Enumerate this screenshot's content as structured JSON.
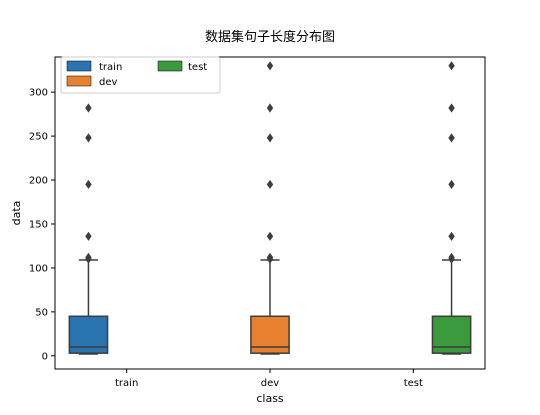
{
  "chart_data": {
    "type": "boxplot",
    "title": "数据集句子长度分布图",
    "xlabel": "class",
    "ylabel": "data",
    "categories": [
      "train",
      "dev",
      "test"
    ],
    "ylim": [
      -15,
      340
    ],
    "yticks": [
      0,
      50,
      100,
      150,
      200,
      250,
      300
    ],
    "legend_position": "top-left",
    "grid": false,
    "series": [
      {
        "name": "train",
        "color": "#2a74b0",
        "category_index": 0,
        "stats": {
          "whisker_low": 2,
          "q1": 3,
          "median": 10,
          "q3": 45,
          "whisker_high": 109
        },
        "outliers": [
          282,
          248,
          195,
          136,
          112,
          110
        ]
      },
      {
        "name": "dev",
        "color": "#e8812f",
        "category_index": 1,
        "stats": {
          "whisker_low": 2,
          "q1": 3,
          "median": 10,
          "q3": 45,
          "whisker_high": 109
        },
        "outliers": [
          330,
          282,
          248,
          195,
          136,
          112,
          110
        ]
      },
      {
        "name": "test",
        "color": "#3b9a3b",
        "category_index": 2,
        "stats": {
          "whisker_low": 2,
          "q1": 3,
          "median": 10,
          "q3": 45,
          "whisker_high": 109
        },
        "outliers": [
          330,
          282,
          248,
          195,
          136,
          112,
          110
        ]
      }
    ]
  }
}
